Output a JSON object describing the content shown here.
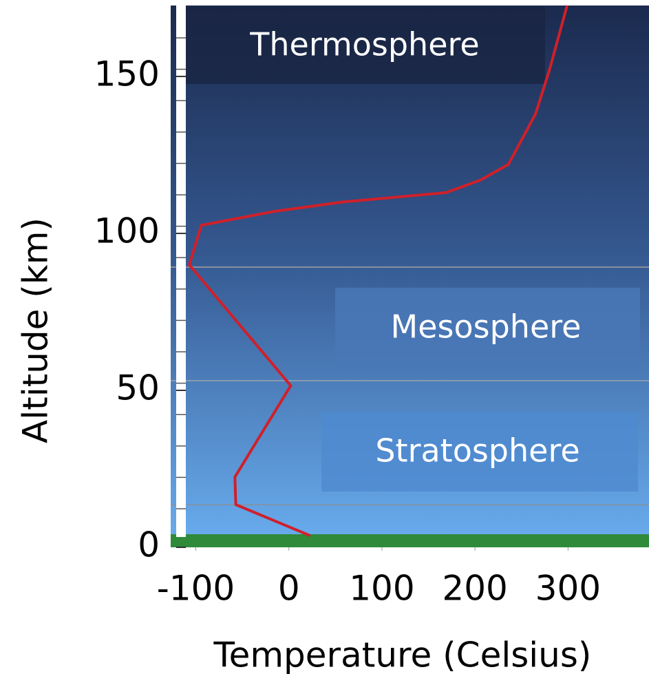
{
  "chart_data": {
    "type": "line",
    "x_label": "Temperature (Celsius)",
    "y_label": "Altitude (km)",
    "x": [
      23,
      -57,
      -58,
      2,
      -107,
      -94,
      -16,
      58,
      169,
      206,
      236,
      265,
      280,
      299
    ],
    "values": [
      3.7,
      13.6,
      22.4,
      51.5,
      90,
      102.6,
      107,
      110,
      113,
      117,
      122,
      138,
      152,
      172.6
    ],
    "color": "#d0202a",
    "xlim": [
      -127,
      387
    ],
    "xticks": [
      -100,
      0,
      100,
      200,
      300
    ],
    "ylim": [
      0,
      172.6
    ],
    "yticks": [
      0,
      50,
      100,
      150
    ],
    "annotations": [
      "Thermosphere",
      "Mesosphere",
      "Stratosphere"
    ]
  }
}
